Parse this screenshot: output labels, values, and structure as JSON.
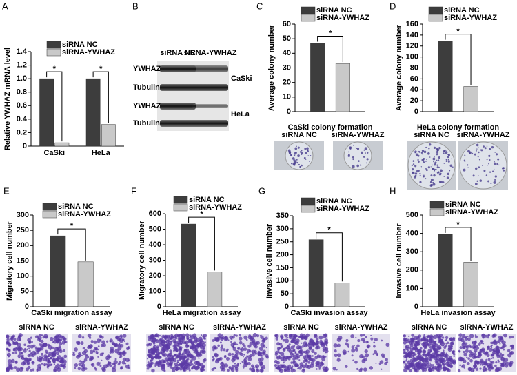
{
  "chart_data": [
    {
      "type": "bar",
      "panel_label": "A",
      "ylabel": "Relative YWHAZ mRNA level",
      "categories": [
        "CaSki",
        "HeLa"
      ],
      "series": [
        {
          "name": "siRNA NC",
          "color": "#3d3d3d",
          "values": [
            1.0,
            1.0
          ]
        },
        {
          "name": "siRNA-YWHAZ",
          "color": "#c9c9c9",
          "values": [
            0.05,
            0.32
          ]
        }
      ],
      "ylim": [
        0,
        1.4
      ],
      "yticks": [
        0,
        0.2,
        0.4,
        0.6,
        0.8,
        {
          "value": 1,
          "label": "1.0"
        },
        1.2,
        1.4
      ],
      "annotations": [
        "*",
        "*"
      ]
    },
    {
      "type": "bar",
      "panel_label": "C",
      "ylabel": "Average colony number",
      "xlabel": "CaSki colony formation",
      "categories": [
        null
      ],
      "series": [
        {
          "name": "siRNA NC",
          "color": "#3d3d3d",
          "values": [
            47
          ]
        },
        {
          "name": "siRNA-YWHAZ",
          "color": "#c9c9c9",
          "values": [
            33
          ]
        }
      ],
      "ylim": [
        0,
        60
      ],
      "yticks": [
        0,
        10,
        20,
        30,
        40,
        50,
        60
      ],
      "annotations": [
        "*"
      ],
      "image_labels": [
        "siRNA NC",
        "siRNA-YWHAZ"
      ]
    },
    {
      "type": "bar",
      "panel_label": "D",
      "ylabel": "Average colony number",
      "xlabel": "HeLa colony formation",
      "categories": [
        null
      ],
      "series": [
        {
          "name": "siRNA NC",
          "color": "#3d3d3d",
          "values": [
            129
          ]
        },
        {
          "name": "siRNA-YWHAZ",
          "color": "#c9c9c9",
          "values": [
            46
          ]
        }
      ],
      "ylim": [
        0,
        160
      ],
      "yticks": [
        0,
        20,
        40,
        60,
        80,
        100,
        120,
        140,
        160
      ],
      "annotations": [
        "*"
      ],
      "image_labels": [
        "siRNA NC",
        "siRNA-YWHAZ"
      ]
    },
    {
      "type": "bar",
      "panel_label": "E",
      "ylabel": "Migratory cell number",
      "xlabel": "CaSki migration assay",
      "categories": [
        null
      ],
      "series": [
        {
          "name": "siRNA NC",
          "color": "#3d3d3d",
          "values": [
            232
          ]
        },
        {
          "name": "siRNA-YWHAZ",
          "color": "#c9c9c9",
          "values": [
            147
          ]
        }
      ],
      "ylim": [
        0,
        300
      ],
      "yticks": [
        0,
        50,
        100,
        150,
        200,
        250,
        300
      ],
      "annotations": [
        "*"
      ],
      "image_labels": [
        "siRNA NC",
        "siRNA-YWHAZ"
      ]
    },
    {
      "type": "bar",
      "panel_label": "F",
      "ylabel": "Migratory cell number",
      "xlabel": "HeLa migration assay",
      "categories": [
        null
      ],
      "series": [
        {
          "name": "siRNA NC",
          "color": "#3d3d3d",
          "values": [
            533
          ]
        },
        {
          "name": "siRNA-YWHAZ",
          "color": "#c9c9c9",
          "values": [
            225
          ]
        }
      ],
      "ylim": [
        0,
        600
      ],
      "yticks": [
        0,
        100,
        200,
        300,
        400,
        500,
        600
      ],
      "annotations": [
        "*"
      ],
      "image_labels": [
        "siRNA NC",
        "siRNA-YWHAZ"
      ]
    },
    {
      "type": "bar",
      "panel_label": "G",
      "ylabel": "Invasive cell number",
      "xlabel": "CaSki invasion assay",
      "categories": [
        null
      ],
      "series": [
        {
          "name": "siRNA NC",
          "color": "#3d3d3d",
          "values": [
            258
          ]
        },
        {
          "name": "siRNA-YWHAZ",
          "color": "#c9c9c9",
          "values": [
            92
          ]
        }
      ],
      "ylim": [
        0,
        350
      ],
      "yticks": [
        0,
        50,
        100,
        150,
        200,
        250,
        300,
        350
      ],
      "annotations": [
        "*"
      ],
      "image_labels": [
        "siRNA NC",
        "siRNA-YWHAZ"
      ]
    },
    {
      "type": "bar",
      "panel_label": "H",
      "ylabel": "Invasive cell number",
      "xlabel": "HeLa invasion assay",
      "categories": [
        null
      ],
      "series": [
        {
          "name": "siRNA NC",
          "color": "#3d3d3d",
          "values": [
            395
          ]
        },
        {
          "name": "siRNA-YWHAZ",
          "color": "#c9c9c9",
          "values": [
            243
          ]
        }
      ],
      "ylim": [
        0,
        500
      ],
      "yticks": [
        0,
        100,
        200,
        300,
        400,
        500
      ],
      "annotations": [
        "*"
      ],
      "image_labels": [
        "siRNA NC",
        "siRNA-YWHAZ"
      ]
    }
  ],
  "blot": {
    "panel_label": "B",
    "lanes": [
      "siRNA NC",
      "siRNA-YWHAZ"
    ],
    "rows": [
      "YWHAZ",
      "Tubulin",
      "YWHAZ",
      "Tubulin"
    ],
    "cell_lines": [
      "CaSki",
      "HeLa"
    ]
  }
}
